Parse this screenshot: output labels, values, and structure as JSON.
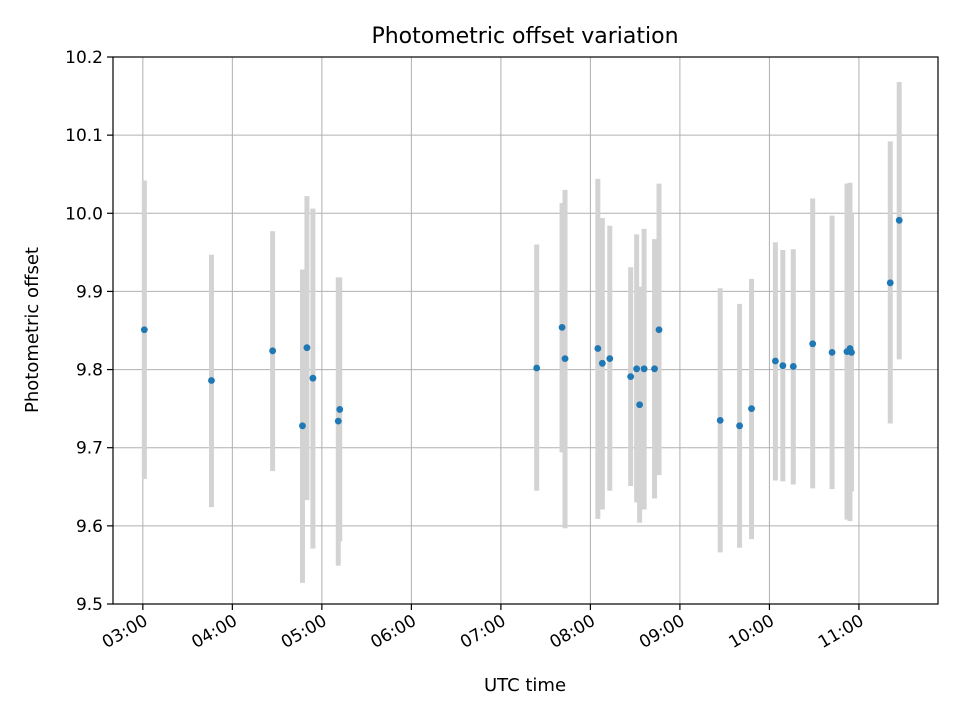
{
  "chart_data": {
    "type": "scatter",
    "title": "Photometric offset variation",
    "xlabel": "UTC time",
    "ylabel": "Photometric offset",
    "x_axis_type": "time",
    "xlim": [
      "02:40",
      "11:53"
    ],
    "ylim": [
      9.5,
      10.2
    ],
    "x_ticks": [
      "03:00",
      "04:00",
      "05:00",
      "06:00",
      "07:00",
      "08:00",
      "09:00",
      "10:00",
      "11:00"
    ],
    "y_ticks": [
      "9.5",
      "9.6",
      "9.7",
      "9.8",
      "9.9",
      "10.0",
      "10.1",
      "10.2"
    ],
    "grid": true,
    "point_color": "#1f77b4",
    "errorbar_color": "#d3d3d3",
    "points": [
      {
        "t": "03:01",
        "y": 9.851,
        "lo": 9.66,
        "hi": 10.042
      },
      {
        "t": "03:46",
        "y": 9.786,
        "lo": 9.624,
        "hi": 9.947
      },
      {
        "t": "04:27",
        "y": 9.824,
        "lo": 9.67,
        "hi": 9.977
      },
      {
        "t": "04:47",
        "y": 9.728,
        "lo": 9.527,
        "hi": 9.928
      },
      {
        "t": "04:50",
        "y": 9.828,
        "lo": 9.633,
        "hi": 10.022
      },
      {
        "t": "04:54",
        "y": 9.789,
        "lo": 9.571,
        "hi": 10.006
      },
      {
        "t": "05:11",
        "y": 9.734,
        "lo": 9.549,
        "hi": 9.918
      },
      {
        "t": "05:12",
        "y": 9.749,
        "lo": 9.58,
        "hi": 9.918
      },
      {
        "t": "07:24",
        "y": 9.802,
        "lo": 9.645,
        "hi": 9.96
      },
      {
        "t": "07:41",
        "y": 9.854,
        "lo": 9.694,
        "hi": 10.013
      },
      {
        "t": "07:43",
        "y": 9.814,
        "lo": 9.597,
        "hi": 10.03
      },
      {
        "t": "08:05",
        "y": 9.827,
        "lo": 9.609,
        "hi": 10.044
      },
      {
        "t": "08:08",
        "y": 9.808,
        "lo": 9.621,
        "hi": 9.994
      },
      {
        "t": "08:13",
        "y": 9.814,
        "lo": 9.645,
        "hi": 9.984
      },
      {
        "t": "08:27",
        "y": 9.791,
        "lo": 9.651,
        "hi": 9.931
      },
      {
        "t": "08:31",
        "y": 9.801,
        "lo": 9.63,
        "hi": 9.973
      },
      {
        "t": "08:33",
        "y": 9.755,
        "lo": 9.604,
        "hi": 9.906
      },
      {
        "t": "08:36",
        "y": 9.801,
        "lo": 9.621,
        "hi": 9.98
      },
      {
        "t": "08:43",
        "y": 9.801,
        "lo": 9.635,
        "hi": 9.967
      },
      {
        "t": "08:46",
        "y": 9.851,
        "lo": 9.665,
        "hi": 10.038
      },
      {
        "t": "09:27",
        "y": 9.735,
        "lo": 9.566,
        "hi": 9.904
      },
      {
        "t": "09:40",
        "y": 9.728,
        "lo": 9.572,
        "hi": 9.884
      },
      {
        "t": "09:48",
        "y": 9.75,
        "lo": 9.583,
        "hi": 9.916
      },
      {
        "t": "10:04",
        "y": 9.811,
        "lo": 9.658,
        "hi": 9.963
      },
      {
        "t": "10:09",
        "y": 9.805,
        "lo": 9.657,
        "hi": 9.953
      },
      {
        "t": "10:16",
        "y": 9.804,
        "lo": 9.653,
        "hi": 9.954
      },
      {
        "t": "10:29",
        "y": 9.833,
        "lo": 9.648,
        "hi": 10.019
      },
      {
        "t": "10:42",
        "y": 9.822,
        "lo": 9.647,
        "hi": 9.997
      },
      {
        "t": "10:52",
        "y": 9.823,
        "lo": 9.608,
        "hi": 10.038
      },
      {
        "t": "10:54",
        "y": 9.827,
        "lo": 9.606,
        "hi": 10.039
      },
      {
        "t": "10:55",
        "y": 9.822,
        "lo": 9.644,
        "hi": 10.0
      },
      {
        "t": "11:21",
        "y": 9.911,
        "lo": 9.731,
        "hi": 10.092
      },
      {
        "t": "11:27",
        "y": 9.991,
        "lo": 9.813,
        "hi": 10.168
      }
    ]
  }
}
